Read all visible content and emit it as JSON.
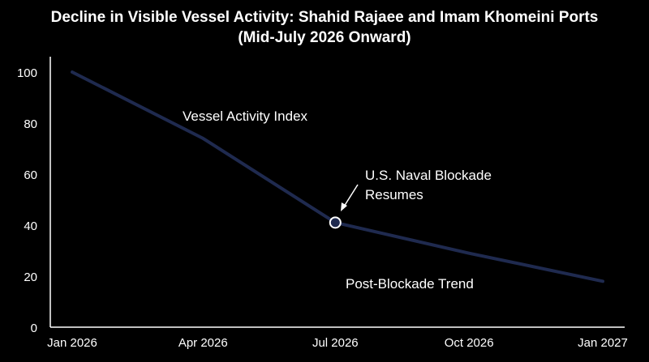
{
  "chart_data": {
    "type": "line",
    "title_line1": "Decline in Visible Vessel Activity: Shahid Rajaee and Imam Khomeini Ports",
    "title_line2": "(Mid-July 2026 Onward)",
    "xlabel": "",
    "ylabel": "",
    "x_ticks": [
      "Jan 2026",
      "Apr 2026",
      "Jul 2026",
      "Oct 2026",
      "Jan 2027"
    ],
    "y_ticks": [
      0,
      20,
      40,
      60,
      80,
      100
    ],
    "ylim": [
      0,
      100
    ],
    "series": [
      {
        "name": "Vessel Activity Index",
        "color": "#1f2a4f",
        "points": [
          {
            "x": "2026-01-01",
            "y": 100
          },
          {
            "x": "2026-04-01",
            "y": 74
          },
          {
            "x": "2026-07-01",
            "y": 41
          },
          {
            "x": "2026-10-01",
            "y": 29
          },
          {
            "x": "2027-01-01",
            "y": 18
          }
        ]
      }
    ],
    "marker": {
      "x": "2026-07-01",
      "y": 41
    },
    "annotations": {
      "series_label": "Vessel Activity Index",
      "event_line1": "U.S. Naval Blockade",
      "event_line2": "Resumes",
      "trend_label": "Post-Blockade Trend"
    },
    "grid": false,
    "background": "#000000",
    "axis_color": "#ffffff"
  }
}
